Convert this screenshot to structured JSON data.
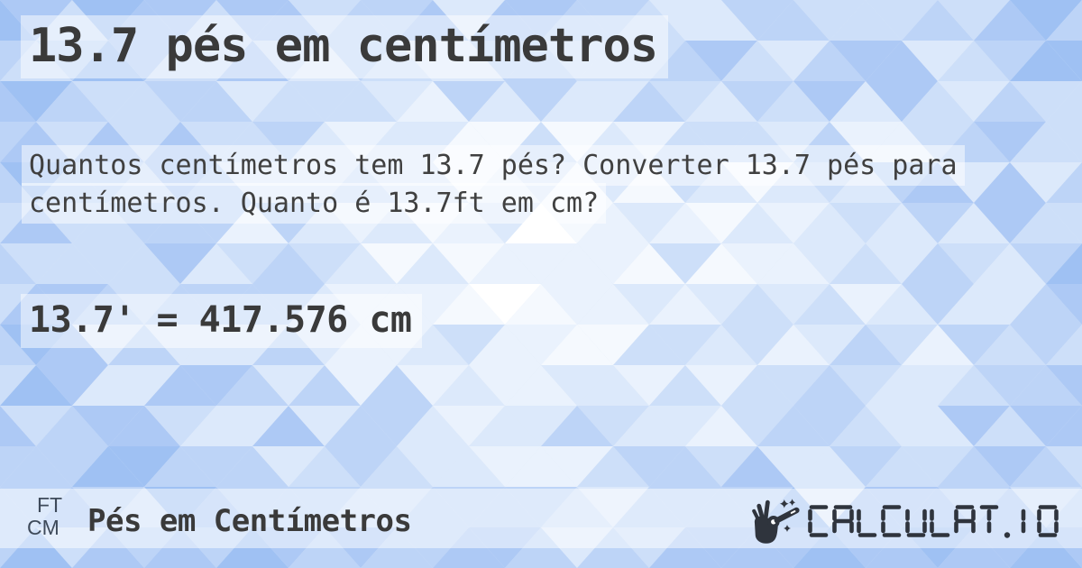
{
  "page": {
    "title": "13.7 pés em centímetros",
    "description": "Quantos centímetros tem 13.7 pés? Converter 13.7 pés para centímetros. Quanto é 13.7ft em cm?"
  },
  "result": {
    "text": "13.7' = 417.576 cm"
  },
  "footer": {
    "unit_from": "FT",
    "unit_to": "CM",
    "label": "Pés em Centímetros",
    "brand": "CALCULAT.IO"
  },
  "theme": {
    "text_color": "#3a3a3a",
    "unit_badge_color": "#3e4a5a",
    "logo_color": "#2f343d",
    "highlight_strip": "rgba(255,255,255,0.5)",
    "triangle_palette": [
      "#ffffff",
      "#f5f9fe",
      "#eaf2fd",
      "#dce9fb",
      "#cddff9",
      "#bdd4f7",
      "#adc9f5",
      "#9fc1f3"
    ]
  }
}
